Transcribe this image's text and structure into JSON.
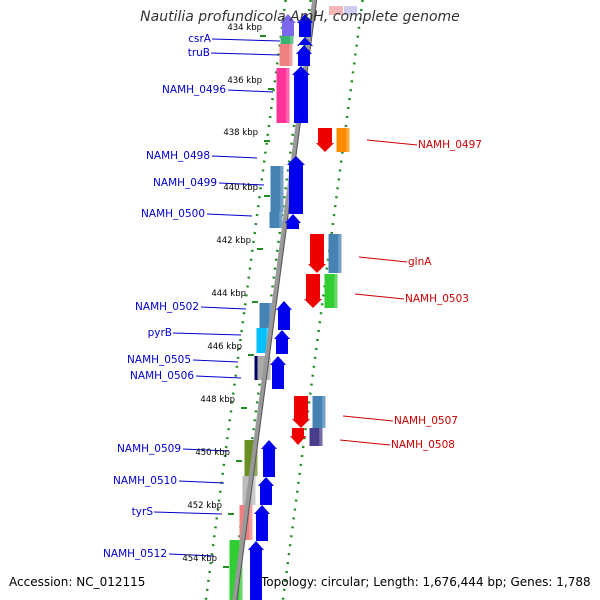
{
  "title": "Nautilia profundicola AmH, complete genome",
  "footer": {
    "accession": "Accession: NC_012115",
    "summary": "Topology: circular; Length: 1,676,444 bp; Genes: 1,788"
  },
  "ticks": [
    "434 kbp",
    "436 kbp",
    "438 kbp",
    "440 kbp",
    "442 kbp",
    "444 kbp",
    "446 kbp",
    "448 kbp",
    "450 kbp",
    "452 kbp",
    "454 kbp"
  ],
  "colors": {
    "forward_label": "#0000cc",
    "reverse_label": "#cc0000",
    "forward_arrow": "#0000ee",
    "reverse_arrow": "#ee0000",
    "backbone": "#999999",
    "grid": "#228b22"
  },
  "forward_genes": [
    {
      "label": "csrA",
      "cog": "#3cb371"
    },
    {
      "label": "truB",
      "cog": "#f08080"
    },
    {
      "label": "NAMH_0496",
      "cog": "#ff3399"
    },
    {
      "label": "NAMH_0498",
      "cog": "#4682b4"
    },
    {
      "label": "NAMH_0499",
      "cog": "#4682b4"
    },
    {
      "label": "NAMH_0500",
      "cog": "#4682b4"
    },
    {
      "label": "NAMH_0502",
      "cog": "#4682b4"
    },
    {
      "label": "pyrB",
      "cog": "#00bfff"
    },
    {
      "label": "NAMH_0505",
      "cog": "#000066"
    },
    {
      "label": "NAMH_0506",
      "cog": "#aaaaaa"
    },
    {
      "label": "NAMH_0509",
      "cog": "#6b8e23"
    },
    {
      "label": "NAMH_0510",
      "cog": "#bbbbbb"
    },
    {
      "label": "tyrS",
      "cog": "#f08080"
    },
    {
      "label": "NAMH_0512",
      "cog": "#32cd32"
    }
  ],
  "reverse_genes": [
    {
      "label": "NAMH_0497",
      "cog": "#ff8c00"
    },
    {
      "label": "glnA",
      "cog": "#4682b4"
    },
    {
      "label": "NAMH_0503",
      "cog": "#32cd32"
    },
    {
      "label": "NAMH_0507",
      "cog": "#4682b4"
    },
    {
      "label": "NAMH_0508",
      "cog": "#483d8b"
    }
  ]
}
